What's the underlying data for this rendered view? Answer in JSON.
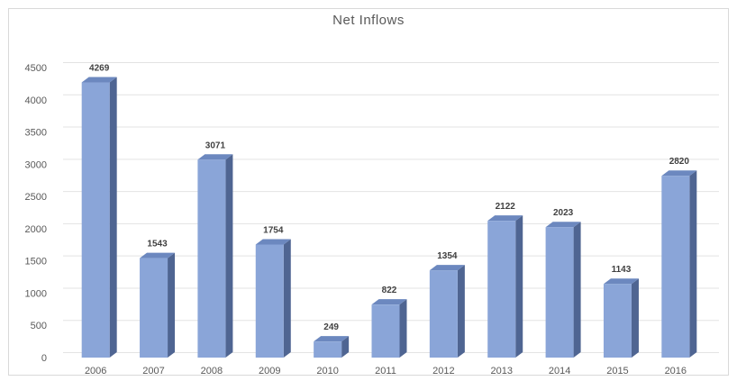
{
  "chart_data": {
    "type": "bar",
    "title": "Net Inflows",
    "xlabel": "",
    "ylabel": "",
    "categories": [
      "2006",
      "2007",
      "2008",
      "2009",
      "2010",
      "2011",
      "2012",
      "2013",
      "2014",
      "2015",
      "2016"
    ],
    "values": [
      4269,
      1543,
      3071,
      1754,
      249,
      822,
      1354,
      2122,
      2023,
      1143,
      2820
    ],
    "ylim": [
      0,
      4500
    ],
    "yticks": [
      "0",
      "500",
      "1000",
      "1500",
      "2000",
      "2500",
      "3000",
      "3500",
      "4000",
      "4500"
    ],
    "grid": true,
    "legend": "none",
    "style": "3d-column"
  },
  "colors": {
    "bar_front": "#8aa5d8",
    "bar_side": "#4f6592",
    "bar_top": "#6c88bf",
    "grid": "#e3e3e3",
    "text": "#595959"
  }
}
